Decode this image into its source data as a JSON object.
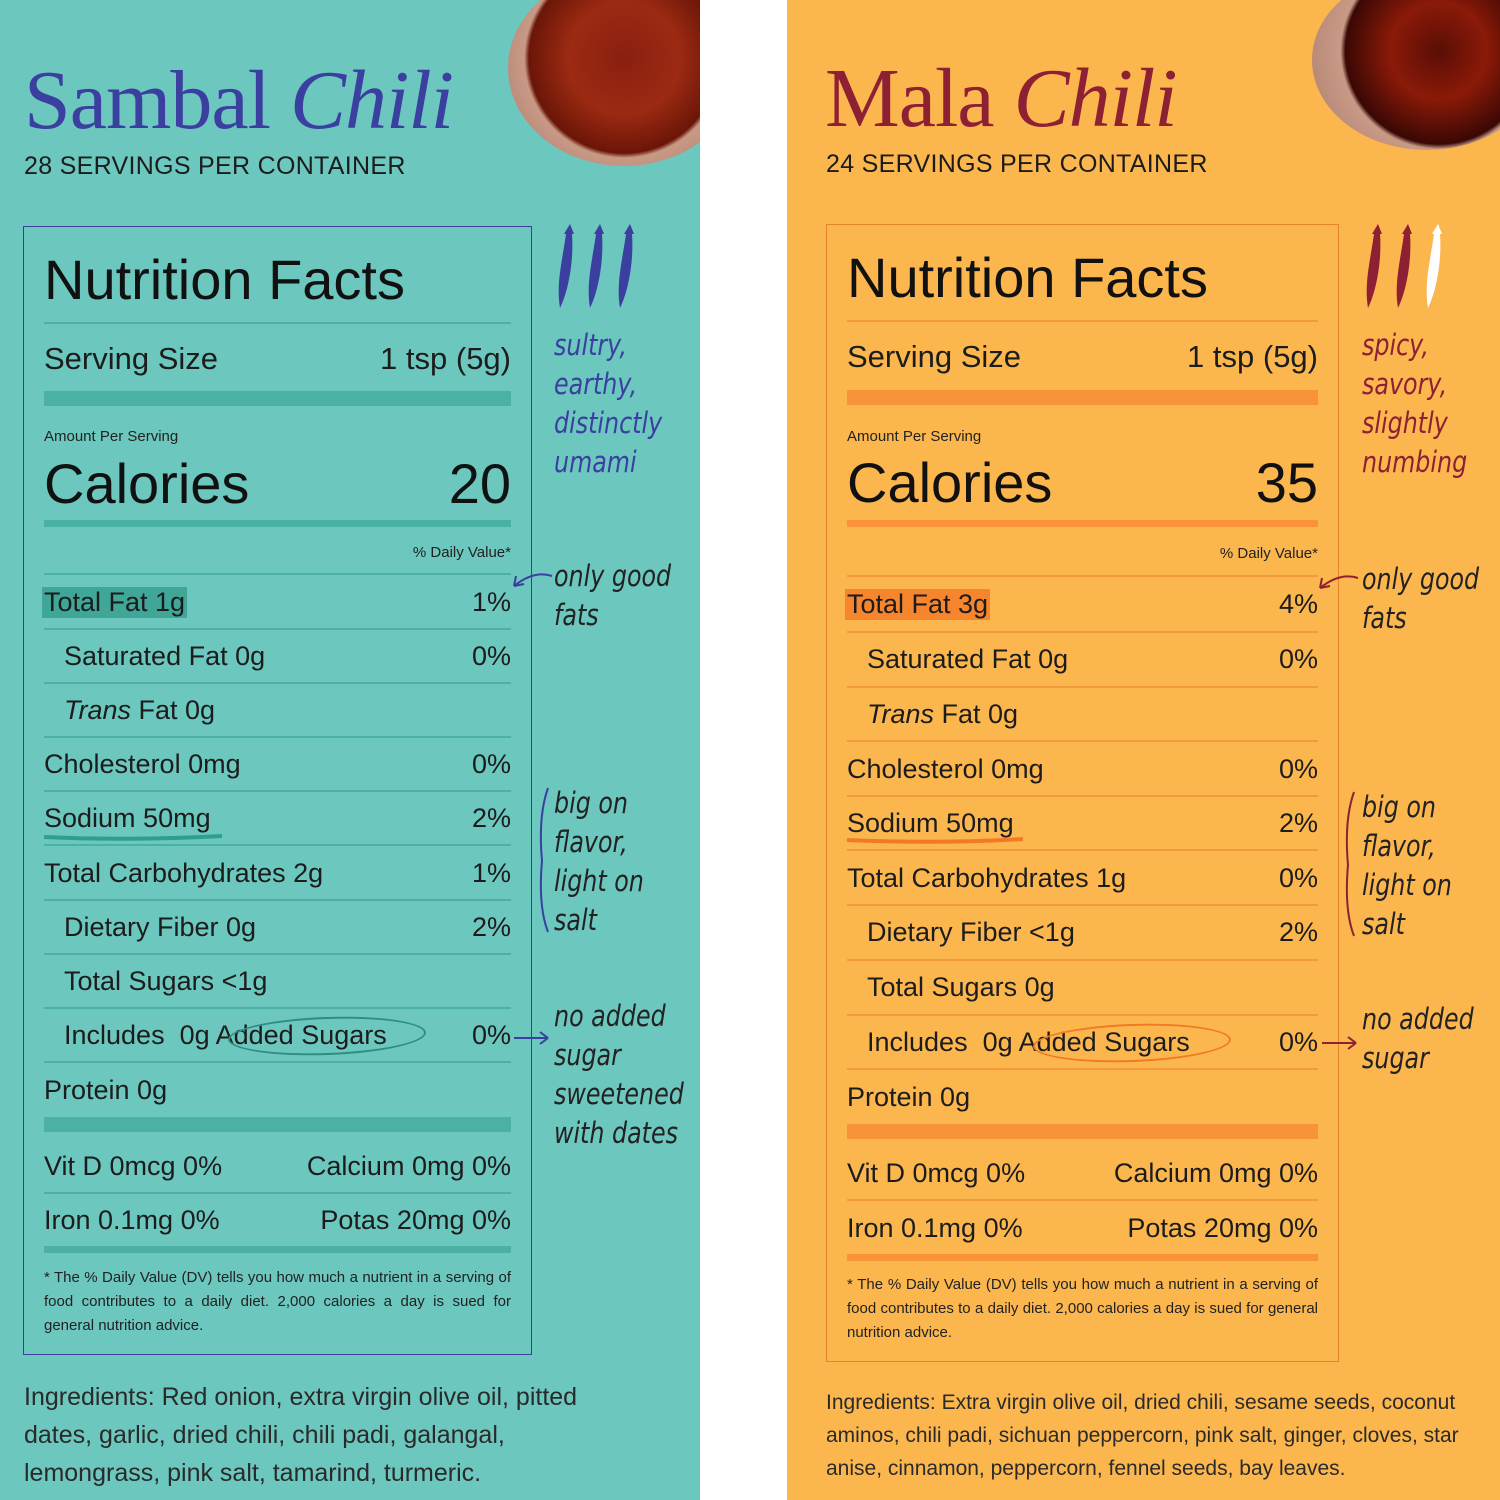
{
  "panels": [
    {
      "id": "sambal",
      "title_regular": "Sambal",
      "title_italic": "Chili",
      "servings": "28 SERVINGS PER CONTAINER",
      "colors": {
        "background": "#6cc7be",
        "accent": "#3a3fa0",
        "highlight": "#4ab1a4"
      },
      "nutrition": {
        "heading": "Nutrition Facts",
        "serving_size_label": "Serving Size",
        "serving_size_value": "1 tsp (5g)",
        "amount_per_serving": "Amount Per Serving",
        "calories_label": "Calories",
        "calories_value": "20",
        "daily_value_header": "% Daily Value*",
        "total_fat": {
          "label": "Total Fat 1g",
          "dv": "1%"
        },
        "saturated_fat": {
          "label": "Saturated Fat 0g",
          "dv": "0%"
        },
        "trans_fat": {
          "label_italic": "Trans",
          "label": "Fat 0g"
        },
        "cholesterol": {
          "label": "Cholesterol 0mg",
          "dv": "0%"
        },
        "sodium": {
          "label": "Sodium 50mg",
          "dv": "2%"
        },
        "total_carbs": {
          "label": "Total Carbohydrates 2g",
          "dv": "1%"
        },
        "dietary_fiber": {
          "label": "Dietary Fiber 0g",
          "dv": "2%"
        },
        "total_sugars": {
          "label": "Total Sugars <1g"
        },
        "added_sugars": {
          "label_prefix": "Includes  0g",
          "label_circled": "Added Sugars",
          "dv": "0%"
        },
        "protein": {
          "label": "Protein 0g"
        },
        "vitd": "Vit D 0mcg 0%",
        "calcium": "Calcium 0mg 0%",
        "iron": "Iron 0.1mg 0%",
        "potas": "Potas 20mg 0%",
        "footnote": "* The % Daily Value (DV) tells you how much a nutrient in a serving of food contributes to a daily diet. 2,000 calories a day is sued for general nutrition advice."
      },
      "notes": {
        "flavor": [
          "sultry,",
          "earthy,",
          "distinctly",
          "umami"
        ],
        "fats": [
          "only good",
          "fats"
        ],
        "salt": [
          "big on",
          "flavor,",
          "light on",
          "salt"
        ],
        "sugar": [
          "no added",
          "sugar",
          "sweetened",
          "with dates"
        ]
      },
      "ingredients_label": "Ingredients:",
      "ingredients": " Red onion, extra virgin olive oil, pitted dates, garlic, dried chili, chili padi, galangal, lemongrass, pink salt, tamarind, turmeric."
    },
    {
      "id": "mala",
      "title_regular": "Mala",
      "title_italic": "Chili",
      "servings": "24 SERVINGS PER CONTAINER",
      "colors": {
        "background": "#fbb64e",
        "accent": "#8e2034",
        "highlight": "#f8933a"
      },
      "nutrition": {
        "heading": "Nutrition Facts",
        "serving_size_label": "Serving Size",
        "serving_size_value": "1 tsp (5g)",
        "amount_per_serving": "Amount Per Serving",
        "calories_label": "Calories",
        "calories_value": "35",
        "daily_value_header": "% Daily Value*",
        "total_fat": {
          "label": "Total Fat 3g",
          "dv": "4%"
        },
        "saturated_fat": {
          "label": "Saturated Fat 0g",
          "dv": "0%"
        },
        "trans_fat": {
          "label_italic": "Trans",
          "label": "Fat 0g"
        },
        "cholesterol": {
          "label": "Cholesterol 0mg",
          "dv": "0%"
        },
        "sodium": {
          "label": "Sodium 50mg",
          "dv": "2%"
        },
        "total_carbs": {
          "label": "Total Carbohydrates 1g",
          "dv": "0%"
        },
        "dietary_fiber": {
          "label": "Dietary Fiber <1g",
          "dv": "2%"
        },
        "total_sugars": {
          "label": "Total Sugars 0g"
        },
        "added_sugars": {
          "label_prefix": "Includes  0g",
          "label_circled": "Added Sugars",
          "dv": "0%"
        },
        "protein": {
          "label": "Protein 0g"
        },
        "vitd": "Vit D 0mcg 0%",
        "calcium": "Calcium 0mg 0%",
        "iron": "Iron 0.1mg 0%",
        "potas": "Potas 20mg 0%",
        "footnote": "* The % Daily Value (DV) tells you how much a nutrient in a serving of food contributes to a daily diet. 2,000 calories a day is sued for general nutrition advice."
      },
      "notes": {
        "flavor": [
          "spicy,",
          "savory,",
          "slightly",
          "numbing"
        ],
        "fats": [
          "only good",
          "fats"
        ],
        "salt": [
          "big on",
          "flavor,",
          "light on",
          "salt"
        ],
        "sugar": [
          "no added",
          "sugar"
        ]
      },
      "ingredients_label": "Ingredients:",
      "ingredients": " Extra virgin olive oil, dried chili, sesame seeds, coconut aminos, chili padi, sichuan peppercorn, pink salt, ginger, cloves, star anise, cinnamon, peppercorn, fennel seeds, bay leaves."
    }
  ]
}
